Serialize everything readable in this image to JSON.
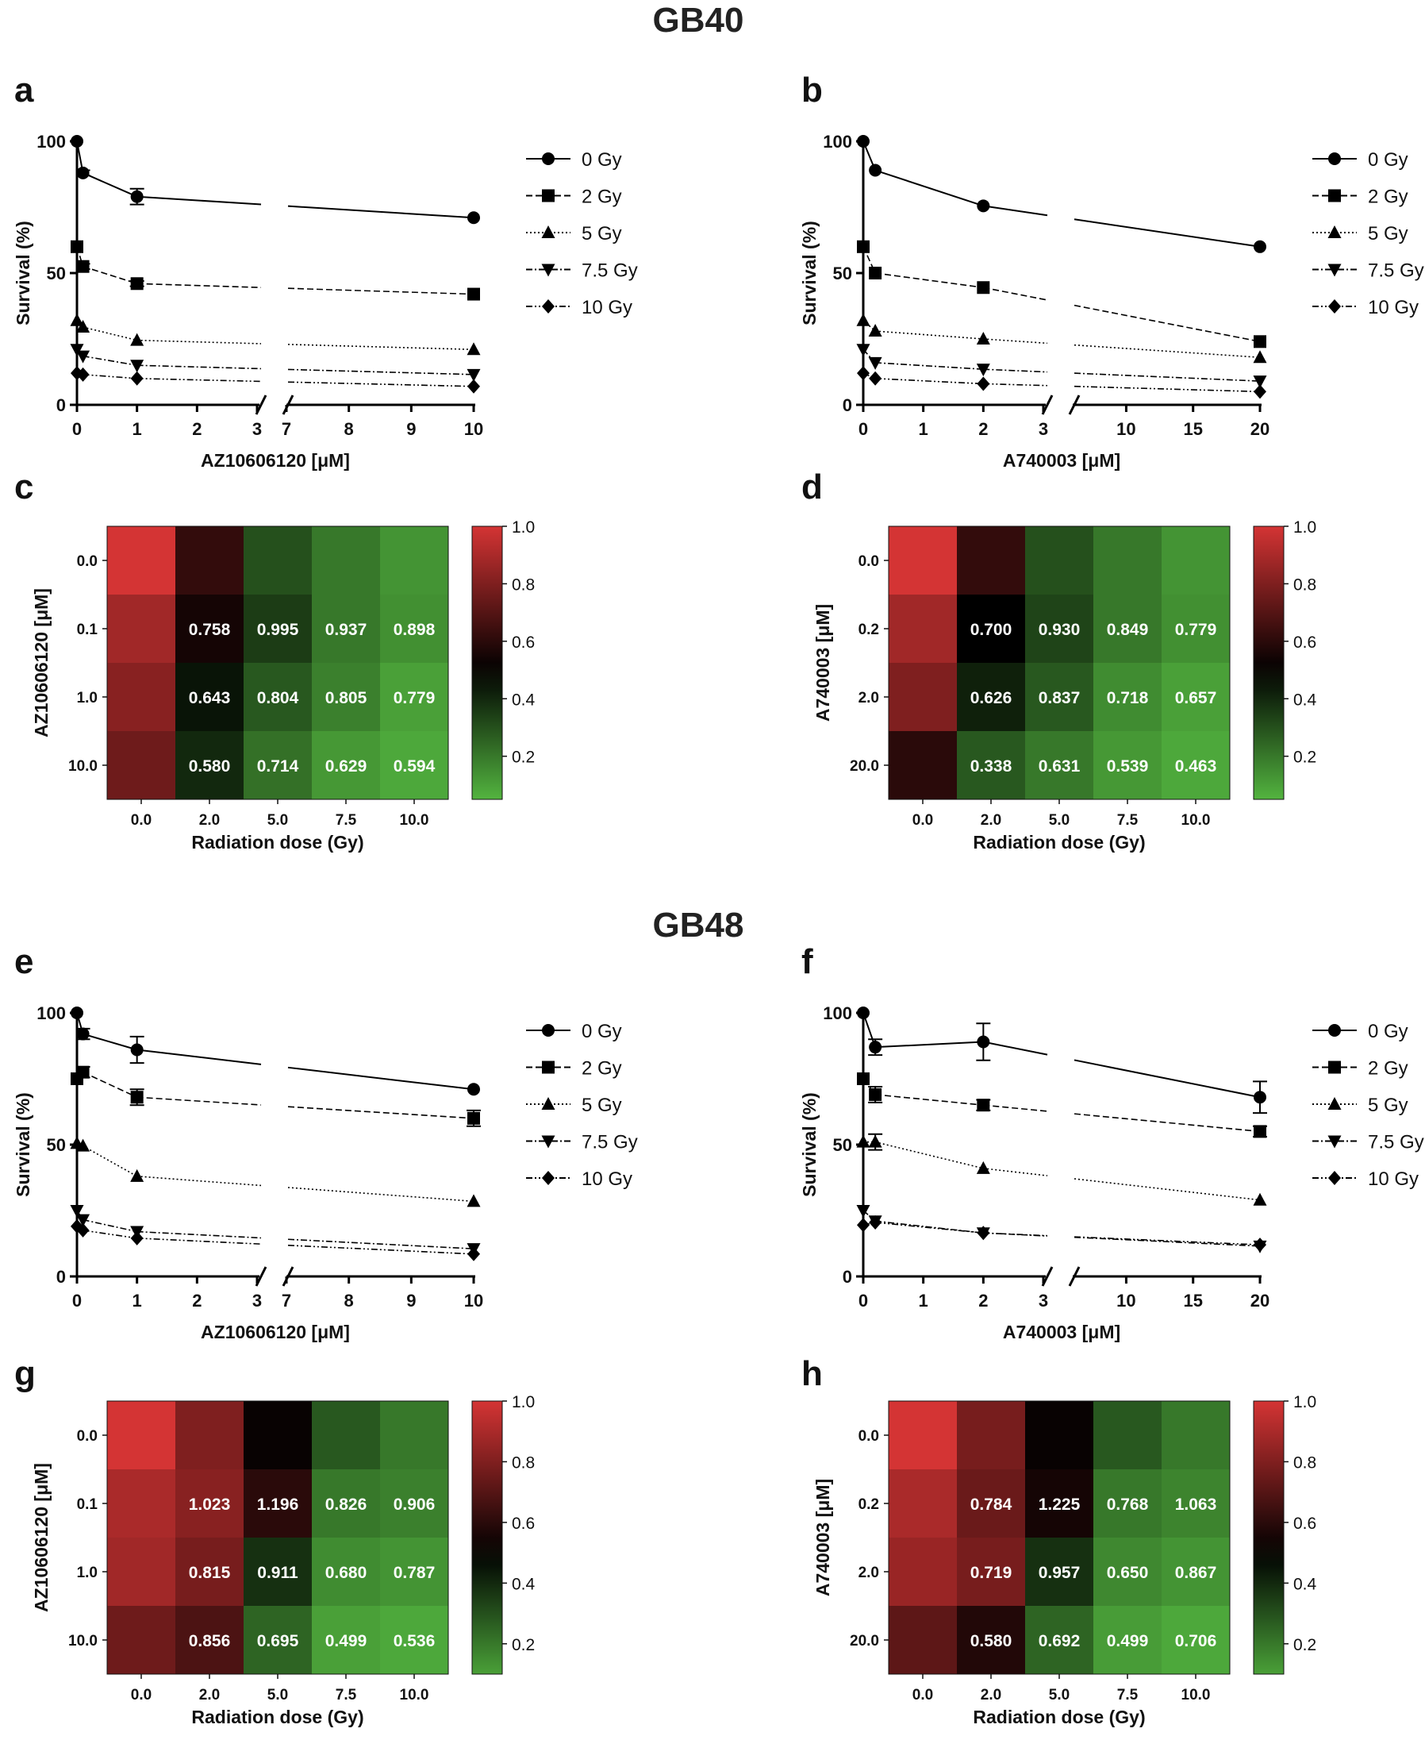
{
  "sections": [
    {
      "title": "GB40"
    },
    {
      "title": "GB48"
    }
  ],
  "legend": {
    "labels": [
      "0 Gy",
      "2 Gy",
      "5 Gy",
      "7.5 Gy",
      "10 Gy"
    ],
    "markers": [
      "circle",
      "square",
      "triangle-up",
      "triangle-down",
      "diamond"
    ]
  },
  "chart_data": [
    {
      "panel": "a",
      "type": "line",
      "ylabel": "Survival (%)",
      "xlabel": "AZ10606120 [μM]",
      "xticks_left": [
        "0",
        "1",
        "2",
        "3"
      ],
      "xticks_right": [
        "7",
        "8",
        "9",
        "10"
      ],
      "yticks": [
        "0",
        "50",
        "100"
      ],
      "ylim": [
        0,
        100
      ],
      "x": [
        0,
        0.1,
        1,
        10
      ],
      "series": [
        {
          "name": "0 Gy",
          "values": [
            100,
            88,
            79,
            71
          ],
          "err": [
            0,
            1,
            3,
            0
          ]
        },
        {
          "name": "2 Gy",
          "values": [
            60,
            52.5,
            46,
            42
          ],
          "err": [
            0,
            1,
            1,
            0
          ]
        },
        {
          "name": "5 Gy",
          "values": [
            32,
            29.5,
            24.5,
            21
          ],
          "err": [
            0,
            0,
            0,
            0
          ]
        },
        {
          "name": "7.5 Gy",
          "values": [
            21,
            18.5,
            15,
            11.5
          ],
          "err": [
            0,
            0,
            0,
            0
          ]
        },
        {
          "name": "10 Gy",
          "values": [
            12,
            11.5,
            10,
            7
          ],
          "err": [
            0,
            0,
            0,
            0
          ]
        }
      ]
    },
    {
      "panel": "b",
      "type": "line",
      "ylabel": "Survival (%)",
      "xlabel": "A740003 [μM]",
      "xticks_left": [
        "0",
        "1",
        "2",
        "3"
      ],
      "xticks_right": [
        "10",
        "15",
        "20"
      ],
      "yticks": [
        "0",
        "50",
        "100"
      ],
      "ylim": [
        0,
        100
      ],
      "x": [
        0,
        0.2,
        2,
        20
      ],
      "series": [
        {
          "name": "0 Gy",
          "values": [
            100,
            89,
            75.5,
            60
          ],
          "err": [
            0,
            0,
            0,
            0
          ]
        },
        {
          "name": "2 Gy",
          "values": [
            60,
            50,
            44.5,
            24
          ],
          "err": [
            0,
            0,
            0,
            0
          ]
        },
        {
          "name": "5 Gy",
          "values": [
            32,
            28,
            25,
            18
          ],
          "err": [
            0,
            0,
            0,
            0
          ]
        },
        {
          "name": "7.5 Gy",
          "values": [
            21,
            16,
            13.5,
            9
          ],
          "err": [
            0,
            0,
            0,
            0
          ]
        },
        {
          "name": "10 Gy",
          "values": [
            12,
            10,
            8,
            5
          ],
          "err": [
            0,
            0,
            0,
            0
          ]
        }
      ]
    },
    {
      "panel": "c",
      "type": "heatmap",
      "ylabel": "AZ10606120 [μM]",
      "xlabel": "Radiation dose (Gy)",
      "xcategories": [
        "0.0",
        "2.0",
        "5.0",
        "7.5",
        "10.0"
      ],
      "ycategories": [
        "0.0",
        "0.1",
        "1.0",
        "10.0"
      ],
      "colors": [
        [
          1.0,
          0.62,
          0.3,
          0.2,
          0.13
        ],
        [
          0.88,
          0.55,
          0.35,
          0.2,
          0.14
        ],
        [
          0.82,
          0.45,
          0.28,
          0.18,
          0.1
        ],
        [
          0.76,
          0.4,
          0.22,
          0.12,
          0.08
        ]
      ],
      "labels": [
        [
          "",
          "",
          "",
          "",
          ""
        ],
        [
          "",
          "0.758",
          "0.995",
          "0.937",
          "0.898"
        ],
        [
          "",
          "0.643",
          "0.804",
          "0.805",
          "0.779"
        ],
        [
          "",
          "0.580",
          "0.714",
          "0.629",
          "0.594"
        ]
      ],
      "colorbar": {
        "ticks": [
          "1.0",
          "0.8",
          "0.6",
          "0.4",
          "0.2"
        ],
        "range": [
          0.05,
          1.0
        ]
      }
    },
    {
      "panel": "d",
      "type": "heatmap",
      "ylabel": "A740003 [μM]",
      "xlabel": "Radiation dose (Gy)",
      "xcategories": [
        "0.0",
        "2.0",
        "5.0",
        "7.5",
        "10.0"
      ],
      "ycategories": [
        "0.0",
        "0.2",
        "2.0",
        "20.0"
      ],
      "colors": [
        [
          1.0,
          0.62,
          0.3,
          0.2,
          0.13
        ],
        [
          0.88,
          0.5,
          0.33,
          0.2,
          0.14
        ],
        [
          0.8,
          0.42,
          0.28,
          0.15,
          0.1
        ],
        [
          0.6,
          0.28,
          0.2,
          0.12,
          0.08
        ]
      ],
      "labels": [
        [
          "",
          "",
          "",
          "",
          ""
        ],
        [
          "",
          "0.700",
          "0.930",
          "0.849",
          "0.779"
        ],
        [
          "",
          "0.626",
          "0.837",
          "0.718",
          "0.657"
        ],
        [
          "",
          "0.338",
          "0.631",
          "0.539",
          "0.463"
        ]
      ],
      "colorbar": {
        "ticks": [
          "1.0",
          "0.8",
          "0.6",
          "0.4",
          "0.2"
        ],
        "range": [
          0.05,
          1.0
        ]
      }
    },
    {
      "panel": "e",
      "type": "line",
      "ylabel": "Survival (%)",
      "xlabel": "AZ10606120 [μM]",
      "xticks_left": [
        "0",
        "1",
        "2",
        "3"
      ],
      "xticks_right": [
        "7",
        "8",
        "9",
        "10"
      ],
      "yticks": [
        "0",
        "50",
        "100"
      ],
      "ylim": [
        0,
        100
      ],
      "x": [
        0,
        0.1,
        1,
        10
      ],
      "series": [
        {
          "name": "0 Gy",
          "values": [
            100,
            92,
            86,
            71
          ],
          "err": [
            0,
            2,
            5,
            0
          ]
        },
        {
          "name": "2 Gy",
          "values": [
            75,
            77.5,
            68,
            60
          ],
          "err": [
            0,
            2,
            3,
            3
          ]
        },
        {
          "name": "5 Gy",
          "values": [
            50.5,
            49.5,
            38,
            28.5
          ],
          "err": [
            0,
            0,
            0,
            0
          ]
        },
        {
          "name": "7.5 Gy",
          "values": [
            25,
            21.5,
            17,
            10.5
          ],
          "err": [
            0,
            0,
            0,
            0
          ]
        },
        {
          "name": "10 Gy",
          "values": [
            19,
            17.5,
            14.5,
            8.5
          ],
          "err": [
            0,
            0,
            0,
            0
          ]
        }
      ]
    },
    {
      "panel": "f",
      "type": "line",
      "ylabel": "Survival (%)",
      "xlabel": "A740003 [μM]",
      "xticks_left": [
        "0",
        "1",
        "2",
        "3"
      ],
      "xticks_right": [
        "10",
        "15",
        "20"
      ],
      "yticks": [
        "0",
        "50",
        "100"
      ],
      "ylim": [
        0,
        100
      ],
      "x": [
        0,
        0.2,
        2,
        20
      ],
      "series": [
        {
          "name": "0 Gy",
          "values": [
            100,
            87,
            89,
            68
          ],
          "err": [
            0,
            3,
            7,
            6
          ]
        },
        {
          "name": "2 Gy",
          "values": [
            75,
            69,
            65,
            55
          ],
          "err": [
            0,
            3,
            2,
            2
          ]
        },
        {
          "name": "5 Gy",
          "values": [
            51,
            51,
            41,
            29
          ],
          "err": [
            0,
            3,
            0,
            0
          ]
        },
        {
          "name": "7.5 Gy",
          "values": [
            25,
            21,
            16.5,
            11.5
          ],
          "err": [
            0,
            0,
            0,
            0
          ]
        },
        {
          "name": "10 Gy",
          "values": [
            19.5,
            20.5,
            16.5,
            12
          ],
          "err": [
            0,
            0,
            0,
            0
          ]
        }
      ]
    },
    {
      "panel": "g",
      "type": "heatmap",
      "ylabel": "AZ10606120 [μM]",
      "xlabel": "Radiation dose (Gy)",
      "xcategories": [
        "0.0",
        "2.0",
        "5.0",
        "7.5",
        "10.0"
      ],
      "ycategories": [
        "0.0",
        "0.1",
        "1.0",
        "10.0"
      ],
      "colors": [
        [
          1.0,
          0.8,
          0.52,
          0.28,
          0.2
        ],
        [
          0.9,
          0.82,
          0.6,
          0.2,
          0.18
        ],
        [
          0.88,
          0.78,
          0.38,
          0.15,
          0.13
        ],
        [
          0.76,
          0.68,
          0.25,
          0.1,
          0.08
        ]
      ],
      "labels": [
        [
          "",
          "",
          "",
          "",
          ""
        ],
        [
          "",
          "1.023",
          "1.196",
          "0.826",
          "0.906"
        ],
        [
          "",
          "0.815",
          "0.911",
          "0.680",
          "0.787"
        ],
        [
          "",
          "0.856",
          "0.695",
          "0.499",
          "0.536"
        ]
      ],
      "colorbar": {
        "ticks": [
          "1.0",
          "0.8",
          "0.6",
          "0.4",
          "0.2"
        ],
        "range": [
          0.1,
          1.0
        ]
      }
    },
    {
      "panel": "h",
      "type": "heatmap",
      "ylabel": "A740003 [μM]",
      "xlabel": "Radiation dose (Gy)",
      "xcategories": [
        "0.0",
        "2.0",
        "5.0",
        "7.5",
        "10.0"
      ],
      "ycategories": [
        "0.0",
        "0.2",
        "2.0",
        "20.0"
      ],
      "colors": [
        [
          1.0,
          0.78,
          0.52,
          0.28,
          0.2
        ],
        [
          0.9,
          0.75,
          0.55,
          0.2,
          0.17
        ],
        [
          0.86,
          0.78,
          0.38,
          0.16,
          0.13
        ],
        [
          0.72,
          0.58,
          0.25,
          0.11,
          0.08
        ]
      ],
      "labels": [
        [
          "",
          "",
          "",
          "",
          ""
        ],
        [
          "",
          "0.784",
          "1.225",
          "0.768",
          "1.063"
        ],
        [
          "",
          "0.719",
          "0.957",
          "0.650",
          "0.867"
        ],
        [
          "",
          "0.580",
          "0.692",
          "0.499",
          "0.706"
        ]
      ],
      "colorbar": {
        "ticks": [
          "1.0",
          "0.8",
          "0.6",
          "0.4",
          "0.2"
        ],
        "range": [
          0.1,
          1.0
        ]
      }
    }
  ]
}
